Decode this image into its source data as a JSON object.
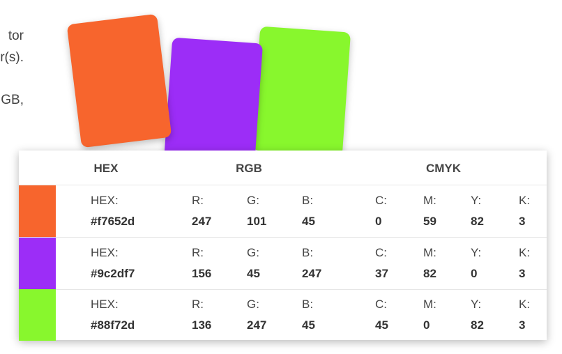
{
  "intro": {
    "lines": [
      "tor",
      "r(s).",
      "",
      "GB,"
    ]
  },
  "cards": [
    {
      "name": "card-orange",
      "color": "#f7652d"
    },
    {
      "name": "card-purple",
      "color": "#9c2df7"
    },
    {
      "name": "card-green",
      "color": "#88f72d"
    }
  ],
  "table": {
    "headers": {
      "hex": "HEX",
      "rgb": "RGB",
      "cmyk": "CMYK"
    },
    "labels": {
      "hex": "HEX:",
      "r": "R:",
      "g": "G:",
      "b": "B:",
      "c": "C:",
      "m": "M:",
      "y": "Y:",
      "k": "K:"
    },
    "rows": [
      {
        "swatch": "#f7652d",
        "hex": "#f7652d",
        "r": "247",
        "g": "101",
        "b": "45",
        "c": "0",
        "m": "59",
        "y": "82",
        "k": "3"
      },
      {
        "swatch": "#9c2df7",
        "hex": "#9c2df7",
        "r": "156",
        "g": "45",
        "b": "247",
        "c": "37",
        "m": "82",
        "y": "0",
        "k": "3"
      },
      {
        "swatch": "#88f72d",
        "hex": "#88f72d",
        "r": "136",
        "g": "247",
        "b": "45",
        "c": "45",
        "m": "0",
        "y": "82",
        "k": "3"
      }
    ]
  }
}
